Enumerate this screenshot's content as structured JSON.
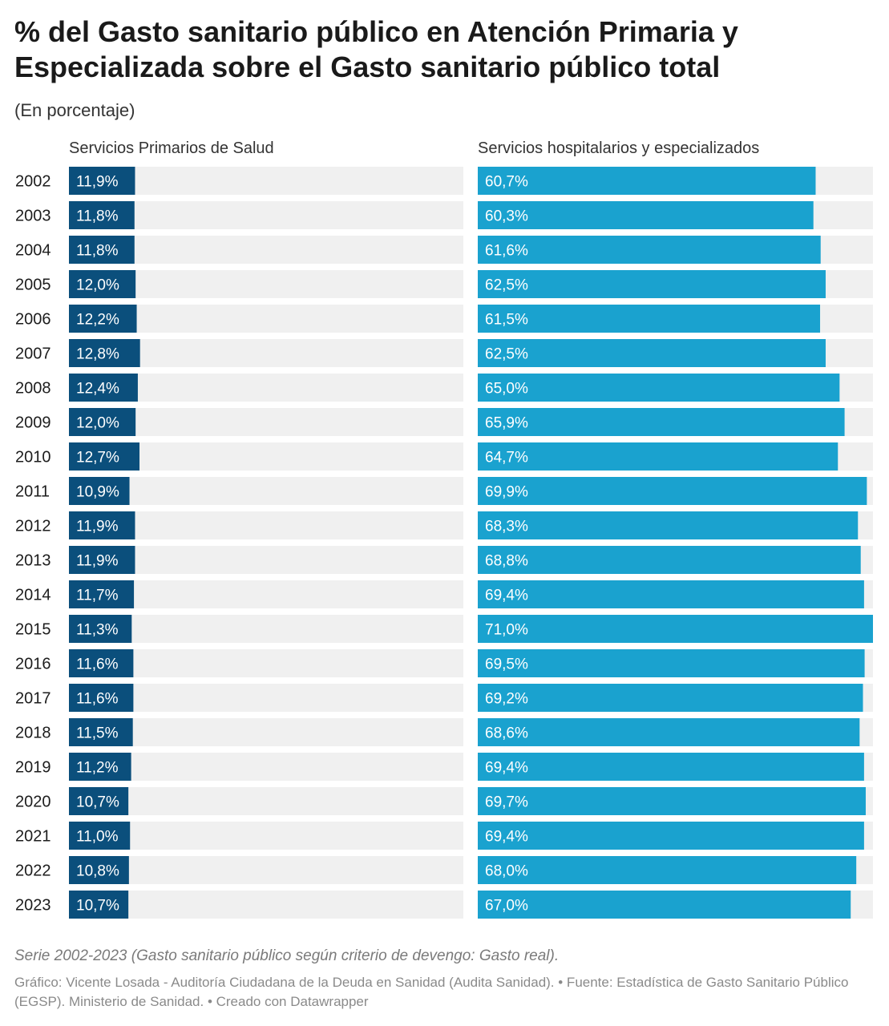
{
  "header": {
    "title": "% del Gasto sanitario público en Atención Primaria y Especializada sobre el Gasto sanitario público total",
    "subtitle": "(En porcentaje)"
  },
  "columns": {
    "left_label": "Servicios Primarios de Salud",
    "right_label": "Servicios hospitalarios y especializados"
  },
  "colors": {
    "primary_bar": "#0b4f7c",
    "specialized_bar": "#1aa2cf",
    "track": "#f0f0f0",
    "label_text": "#ffffff"
  },
  "chart_data": {
    "type": "bar",
    "orientation": "horizontal",
    "categories": [
      "2002",
      "2003",
      "2004",
      "2005",
      "2006",
      "2007",
      "2008",
      "2009",
      "2010",
      "2011",
      "2012",
      "2013",
      "2014",
      "2015",
      "2016",
      "2017",
      "2018",
      "2019",
      "2020",
      "2021",
      "2022",
      "2023"
    ],
    "xlim": [
      0,
      71
    ],
    "series": [
      {
        "name": "Servicios Primarios de Salud",
        "values": [
          11.9,
          11.8,
          11.8,
          12.0,
          12.2,
          12.8,
          12.4,
          12.0,
          12.7,
          10.9,
          11.9,
          11.9,
          11.7,
          11.3,
          11.6,
          11.6,
          11.5,
          11.2,
          10.7,
          11.0,
          10.8,
          10.7
        ],
        "labels": [
          "11,9%",
          "11,8%",
          "11,8%",
          "12,0%",
          "12,2%",
          "12,8%",
          "12,4%",
          "12,0%",
          "12,7%",
          "10,9%",
          "11,9%",
          "11,9%",
          "11,7%",
          "11,3%",
          "11,6%",
          "11,6%",
          "11,5%",
          "11,2%",
          "10,7%",
          "11,0%",
          "10,8%",
          "10,7%"
        ]
      },
      {
        "name": "Servicios hospitalarios y especializados",
        "values": [
          60.7,
          60.3,
          61.6,
          62.5,
          61.5,
          62.5,
          65.0,
          65.9,
          64.7,
          69.9,
          68.3,
          68.8,
          69.4,
          71.0,
          69.5,
          69.2,
          68.6,
          69.4,
          69.7,
          69.4,
          68.0,
          67.0
        ],
        "labels": [
          "60,7%",
          "60,3%",
          "61,6%",
          "62,5%",
          "61,5%",
          "62,5%",
          "65,0%",
          "65,9%",
          "64,7%",
          "69,9%",
          "68,3%",
          "68,8%",
          "69,4%",
          "71,0%",
          "69,5%",
          "69,2%",
          "68,6%",
          "69,4%",
          "69,7%",
          "69,4%",
          "68,0%",
          "67,0%"
        ]
      }
    ]
  },
  "footer": {
    "note": "Serie 2002-2023 (Gasto sanitario público según criterio de devengo: Gasto real).",
    "credit": "Gráfico: Vicente Losada - Auditoría Ciudadana de la Deuda en Sanidad (Audita Sanidad). • Fuente: Estadística de Gasto Sanitario Público (EGSP). Ministerio de Sanidad. • Creado con Datawrapper"
  }
}
